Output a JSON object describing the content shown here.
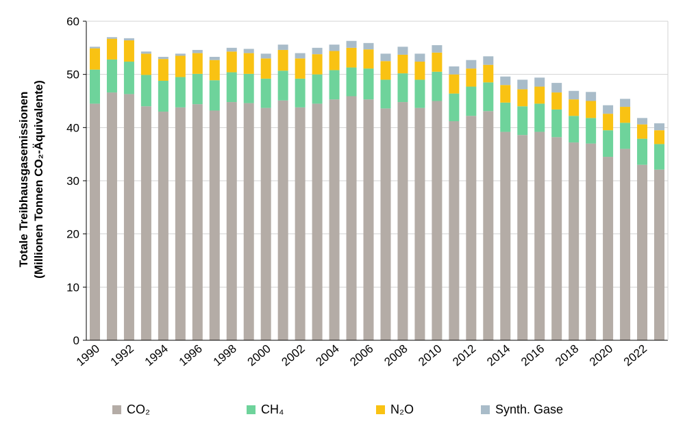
{
  "chart_data": {
    "type": "bar",
    "stacked": true,
    "ylabel_line1": "Totale Treibhausgasemissionen",
    "ylabel_line2": "(Millionen Tonnen CO₂-Äquivalente)",
    "ylim": [
      0,
      60
    ],
    "yticks": [
      "0",
      "10",
      "20",
      "30",
      "40",
      "50",
      "60"
    ],
    "grid": true,
    "legend_position": "bottom",
    "categories": [
      "1990",
      "1991",
      "1992",
      "1993",
      "1994",
      "1995",
      "1996",
      "1997",
      "1998",
      "1999",
      "2000",
      "2001",
      "2002",
      "2003",
      "2004",
      "2005",
      "2006",
      "2007",
      "2008",
      "2009",
      "2010",
      "2011",
      "2012",
      "2013",
      "2014",
      "2015",
      "2016",
      "2017",
      "2018",
      "2019",
      "2020",
      "2021",
      "2022",
      "2023"
    ],
    "xtick_labels": [
      "1990",
      "",
      "1992",
      "",
      "1994",
      "",
      "1996",
      "",
      "1998",
      "",
      "2000",
      "",
      "2002",
      "",
      "2004",
      "",
      "2006",
      "",
      "2008",
      "",
      "2010",
      "",
      "2012",
      "",
      "2014",
      "",
      "2016",
      "",
      "2018",
      "",
      "2020",
      "",
      "2022",
      ""
    ],
    "series": [
      {
        "name": "CO₂",
        "color": "#b4aca6",
        "values": [
          44.5,
          46.6,
          46.3,
          44.0,
          43.0,
          43.8,
          44.4,
          43.2,
          44.8,
          44.6,
          43.7,
          45.1,
          43.8,
          44.5,
          45.3,
          45.9,
          45.3,
          43.6,
          44.8,
          43.7,
          45.0,
          41.2,
          42.2,
          43.1,
          39.2,
          38.6,
          39.2,
          38.2,
          37.2,
          37.0,
          34.5,
          36.0,
          33.0,
          32.1
        ]
      },
      {
        "name": "CH₄",
        "color": "#6ed39b",
        "values": [
          6.4,
          6.2,
          6.1,
          5.9,
          5.8,
          5.7,
          5.7,
          5.7,
          5.6,
          5.5,
          5.5,
          5.6,
          5.4,
          5.5,
          5.5,
          5.4,
          5.8,
          5.4,
          5.4,
          5.3,
          5.5,
          5.2,
          5.5,
          5.4,
          5.5,
          5.4,
          5.3,
          5.2,
          5.0,
          4.8,
          5.0,
          4.9,
          4.9,
          4.8
        ]
      },
      {
        "name": "N₂O",
        "color": "#f9c213",
        "values": [
          4.0,
          3.9,
          4.0,
          4.0,
          4.1,
          4.0,
          3.9,
          3.8,
          3.9,
          3.9,
          3.8,
          3.9,
          3.8,
          3.8,
          3.6,
          3.7,
          3.6,
          3.5,
          3.5,
          3.4,
          3.6,
          3.6,
          3.4,
          3.3,
          3.3,
          3.2,
          3.2,
          3.2,
          3.1,
          3.2,
          3.1,
          3.0,
          2.7,
          2.6
        ]
      },
      {
        "name": "Synth. Gase",
        "color": "#a9bcc9",
        "values": [
          0.3,
          0.3,
          0.4,
          0.4,
          0.4,
          0.4,
          0.6,
          0.6,
          0.7,
          0.8,
          0.9,
          1.0,
          1.0,
          1.2,
          1.2,
          1.3,
          1.2,
          1.4,
          1.5,
          1.5,
          1.4,
          1.5,
          1.6,
          1.6,
          1.6,
          1.8,
          1.7,
          1.8,
          1.6,
          1.7,
          1.6,
          1.5,
          1.2,
          1.3
        ]
      }
    ]
  }
}
